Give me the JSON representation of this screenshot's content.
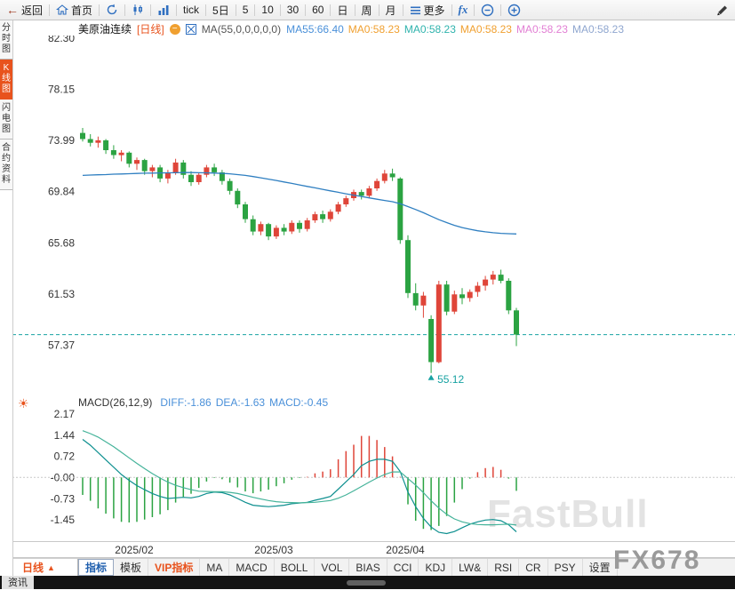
{
  "toolbar": {
    "items": [
      {
        "name": "back-button",
        "icon": "back-arrow-icon",
        "label": "返回"
      },
      {
        "name": "home-button",
        "icon": "home-icon",
        "label": "首页"
      },
      {
        "name": "refresh-button",
        "icon": "refresh-icon",
        "label": ""
      },
      {
        "name": "kline-chart-button",
        "icon": "kline-icon",
        "label": ""
      },
      {
        "name": "volume-chart-button",
        "icon": "volume-bars-icon",
        "label": ""
      },
      {
        "name": "tick-period-button",
        "icon": "",
        "label": "tick"
      },
      {
        "name": "period-5day-button",
        "icon": "",
        "label": "5日"
      },
      {
        "name": "period-5min-button",
        "icon": "",
        "label": "5"
      },
      {
        "name": "period-10min-button",
        "icon": "",
        "label": "10"
      },
      {
        "name": "period-30min-button",
        "icon": "",
        "label": "30"
      },
      {
        "name": "period-60min-button",
        "icon": "",
        "label": "60"
      },
      {
        "name": "period-day-button",
        "icon": "",
        "label": "日"
      },
      {
        "name": "period-week-button",
        "icon": "",
        "label": "周"
      },
      {
        "name": "period-month-button",
        "icon": "",
        "label": "月"
      },
      {
        "name": "more-button",
        "icon": "menu-icon",
        "label": "更多"
      },
      {
        "name": "fx-indicator-button",
        "icon": "",
        "label": "fx",
        "fx": true
      },
      {
        "name": "zoom-out-button",
        "icon": "zoom-out-icon",
        "label": ""
      },
      {
        "name": "zoom-in-button",
        "icon": "zoom-in-icon",
        "label": ""
      },
      {
        "name": "draw-button",
        "icon": "pencil-icon",
        "label": "",
        "push_right": true
      }
    ]
  },
  "left_rail": {
    "items": [
      {
        "label": "分时图",
        "active": false
      },
      {
        "label": "K线图",
        "active": true
      },
      {
        "label": "闪电图",
        "active": false
      },
      {
        "label": "合约资料",
        "active": false
      }
    ],
    "bottom_label": "资讯"
  },
  "chart_header": {
    "symbol": "美原油连续",
    "period_tag": "[日线]",
    "collapse_glyph": "−",
    "ma_settings": "MA(55,0,0,0,0,0)",
    "ma_values": [
      {
        "text": "MA55:66.40",
        "color": "#4a90d9"
      },
      {
        "text": "MA0:58.23",
        "color": "#f0a030"
      },
      {
        "text": "MA0:58.23",
        "color": "#2fb3ad"
      },
      {
        "text": "MA0:58.23",
        "color": "#f0a030"
      },
      {
        "text": "MA0:58.23",
        "color": "#e27fd4"
      },
      {
        "text": "MA0:58.23",
        "color": "#8fa6cf"
      }
    ]
  },
  "macd_header": {
    "title": "MACD(26,12,9)",
    "values": [
      {
        "text": "DIFF:-1.86",
        "color": "#4a90d9"
      },
      {
        "text": "DEA:-1.63",
        "color": "#4a90d9"
      },
      {
        "text": "MACD:-0.45",
        "color": "#4a90d9"
      }
    ]
  },
  "bottom_tabs": {
    "period_label": "日线",
    "period_arrow": "▲",
    "tabs": [
      {
        "label": "指标",
        "selected": true
      },
      {
        "label": "模板"
      },
      {
        "label": "VIP指标",
        "vip": true
      },
      {
        "label": "MA"
      },
      {
        "label": "MACD"
      },
      {
        "label": "BOLL"
      },
      {
        "label": "VOL"
      },
      {
        "label": "BIAS"
      },
      {
        "label": "CCI"
      },
      {
        "label": "KDJ"
      },
      {
        "label": "LW&"
      },
      {
        "label": "RSI"
      },
      {
        "label": "CR"
      },
      {
        "label": "PSY"
      },
      {
        "label": "设置"
      }
    ]
  },
  "watermarks": {
    "fastbull": "FastBull",
    "fx678": "FX678"
  },
  "chart_data": {
    "type": "candlestick",
    "title": "美原油连续 日线",
    "last_price": 58.23,
    "price_axis": {
      "labels": [
        "82.30",
        "78.15",
        "73.99",
        "69.84",
        "65.68",
        "61.53",
        "57.37"
      ],
      "range": [
        53.3,
        82.5
      ]
    },
    "low_label": {
      "text": "55.12",
      "value": 55.12,
      "index": 45
    },
    "x_labels": [
      {
        "text": "2025/02",
        "index": 7
      },
      {
        "text": "2025/03",
        "index": 25
      },
      {
        "text": "2025/04",
        "index": 42
      }
    ],
    "colors": {
      "up": "#df4539",
      "down": "#2ba342",
      "ma55": "#2f7fc1",
      "diff": "#0d8f8f",
      "dea": "#45b39a",
      "last_price_line": "#17a2a2"
    },
    "candles": [
      [
        74.6,
        75.0,
        73.9,
        74.1
      ],
      [
        74.1,
        74.5,
        73.5,
        73.8
      ],
      [
        73.8,
        74.3,
        73.4,
        74.0
      ],
      [
        74.0,
        74.1,
        72.9,
        73.2
      ],
      [
        73.2,
        73.6,
        72.5,
        72.8
      ],
      [
        72.8,
        73.2,
        72.3,
        73.0
      ],
      [
        73.0,
        73.1,
        71.8,
        72.1
      ],
      [
        72.1,
        72.6,
        71.6,
        72.4
      ],
      [
        72.4,
        72.5,
        71.2,
        71.5
      ],
      [
        71.5,
        72.0,
        71.0,
        71.8
      ],
      [
        71.8,
        72.0,
        70.6,
        70.9
      ],
      [
        70.9,
        71.6,
        70.5,
        71.4
      ],
      [
        71.4,
        72.5,
        71.2,
        72.2
      ],
      [
        72.2,
        72.4,
        70.9,
        71.2
      ],
      [
        71.2,
        71.5,
        70.3,
        70.6
      ],
      [
        70.6,
        71.4,
        70.4,
        71.2
      ],
      [
        71.2,
        72.0,
        71.0,
        71.8
      ],
      [
        71.8,
        72.1,
        71.1,
        71.4
      ],
      [
        71.4,
        71.6,
        70.4,
        70.7
      ],
      [
        70.7,
        70.9,
        69.6,
        69.9
      ],
      [
        69.9,
        70.1,
        68.5,
        68.8
      ],
      [
        68.8,
        69.0,
        67.3,
        67.6
      ],
      [
        67.6,
        67.9,
        66.3,
        66.6
      ],
      [
        66.6,
        67.4,
        66.3,
        67.2
      ],
      [
        67.2,
        67.3,
        65.9,
        66.2
      ],
      [
        66.2,
        67.1,
        66.0,
        66.9
      ],
      [
        66.9,
        67.2,
        66.3,
        66.6
      ],
      [
        66.6,
        67.5,
        66.4,
        67.3
      ],
      [
        67.3,
        67.5,
        66.5,
        66.8
      ],
      [
        66.8,
        67.7,
        66.6,
        67.5
      ],
      [
        67.5,
        68.2,
        67.3,
        68.0
      ],
      [
        68.0,
        68.3,
        67.3,
        67.6
      ],
      [
        67.6,
        68.4,
        67.4,
        68.2
      ],
      [
        68.2,
        69.0,
        68.0,
        68.8
      ],
      [
        68.8,
        69.5,
        68.6,
        69.3
      ],
      [
        69.3,
        70.0,
        69.1,
        69.8
      ],
      [
        69.8,
        70.0,
        69.2,
        69.5
      ],
      [
        69.5,
        70.3,
        69.3,
        70.1
      ],
      [
        70.1,
        70.9,
        69.9,
        70.7
      ],
      [
        70.7,
        71.6,
        70.5,
        71.3
      ],
      [
        71.3,
        71.7,
        70.7,
        71.0
      ],
      [
        70.9,
        71.0,
        65.6,
        65.9
      ],
      [
        65.9,
        66.3,
        61.2,
        61.6
      ],
      [
        61.6,
        62.4,
        60.2,
        60.6
      ],
      [
        60.6,
        61.7,
        59.6,
        61.4
      ],
      [
        59.5,
        59.8,
        55.12,
        56.0
      ],
      [
        56.0,
        62.6,
        55.9,
        62.3
      ],
      [
        62.3,
        62.6,
        59.8,
        60.1
      ],
      [
        60.1,
        61.8,
        59.9,
        61.5
      ],
      [
        61.5,
        62.0,
        60.7,
        61.2
      ],
      [
        61.2,
        61.9,
        60.9,
        61.7
      ],
      [
        61.7,
        62.5,
        61.3,
        62.2
      ],
      [
        62.2,
        63.0,
        61.8,
        62.7
      ],
      [
        62.7,
        63.4,
        62.3,
        63.1
      ],
      [
        63.1,
        63.5,
        62.4,
        62.6
      ],
      [
        62.6,
        62.8,
        59.9,
        60.2
      ],
      [
        60.2,
        60.4,
        57.3,
        58.23
      ]
    ],
    "ma55": [
      71.15,
      71.18,
      71.2,
      71.22,
      71.25,
      71.27,
      71.29,
      71.31,
      71.33,
      71.34,
      71.35,
      71.36,
      71.37,
      71.38,
      71.38,
      71.37,
      71.36,
      71.34,
      71.32,
      71.28,
      71.22,
      71.15,
      71.06,
      70.96,
      70.85,
      70.74,
      70.62,
      70.5,
      70.38,
      70.26,
      70.14,
      70.02,
      69.9,
      69.78,
      69.66,
      69.55,
      69.44,
      69.33,
      69.22,
      69.12,
      69.02,
      68.85,
      68.62,
      68.38,
      68.12,
      67.84,
      67.56,
      67.32,
      67.1,
      66.92,
      66.78,
      66.66,
      66.57,
      66.5,
      66.45,
      66.42,
      66.4
    ],
    "macd": {
      "params": "MACD(26,12,9)",
      "axis_labels": [
        "2.17",
        "1.44",
        "0.72",
        "-0.00",
        "-0.73",
        "-1.45"
      ],
      "range": [
        -2.21,
        2.35
      ],
      "diff": [
        1.3,
        1.1,
        0.85,
        0.6,
        0.35,
        0.1,
        -0.1,
        -0.28,
        -0.42,
        -0.55,
        -0.65,
        -0.72,
        -0.7,
        -0.68,
        -0.7,
        -0.65,
        -0.55,
        -0.5,
        -0.52,
        -0.6,
        -0.72,
        -0.85,
        -0.95,
        -0.98,
        -1.0,
        -0.98,
        -0.95,
        -0.9,
        -0.88,
        -0.85,
        -0.78,
        -0.72,
        -0.65,
        -0.4,
        -0.15,
        0.1,
        0.4,
        0.55,
        0.62,
        0.62,
        0.55,
        0.2,
        -0.5,
        -1.0,
        -1.4,
        -1.7,
        -1.88,
        -1.92,
        -1.85,
        -1.72,
        -1.6,
        -1.52,
        -1.46,
        -1.44,
        -1.48,
        -1.62,
        -1.86
      ],
      "dea": [
        1.6,
        1.5,
        1.38,
        1.22,
        1.05,
        0.86,
        0.67,
        0.48,
        0.3,
        0.13,
        -0.02,
        -0.16,
        -0.27,
        -0.35,
        -0.42,
        -0.47,
        -0.48,
        -0.49,
        -0.49,
        -0.51,
        -0.55,
        -0.61,
        -0.68,
        -0.74,
        -0.79,
        -0.83,
        -0.85,
        -0.86,
        -0.87,
        -0.86,
        -0.85,
        -0.82,
        -0.79,
        -0.71,
        -0.6,
        -0.46,
        -0.31,
        -0.16,
        -0.02,
        0.1,
        0.19,
        0.19,
        -0.04,
        -0.26,
        -0.52,
        -0.8,
        -1.05,
        -1.26,
        -1.42,
        -1.52,
        -1.58,
        -1.61,
        -1.62,
        -1.62,
        -1.61,
        -1.6,
        -1.63
      ]
    }
  }
}
